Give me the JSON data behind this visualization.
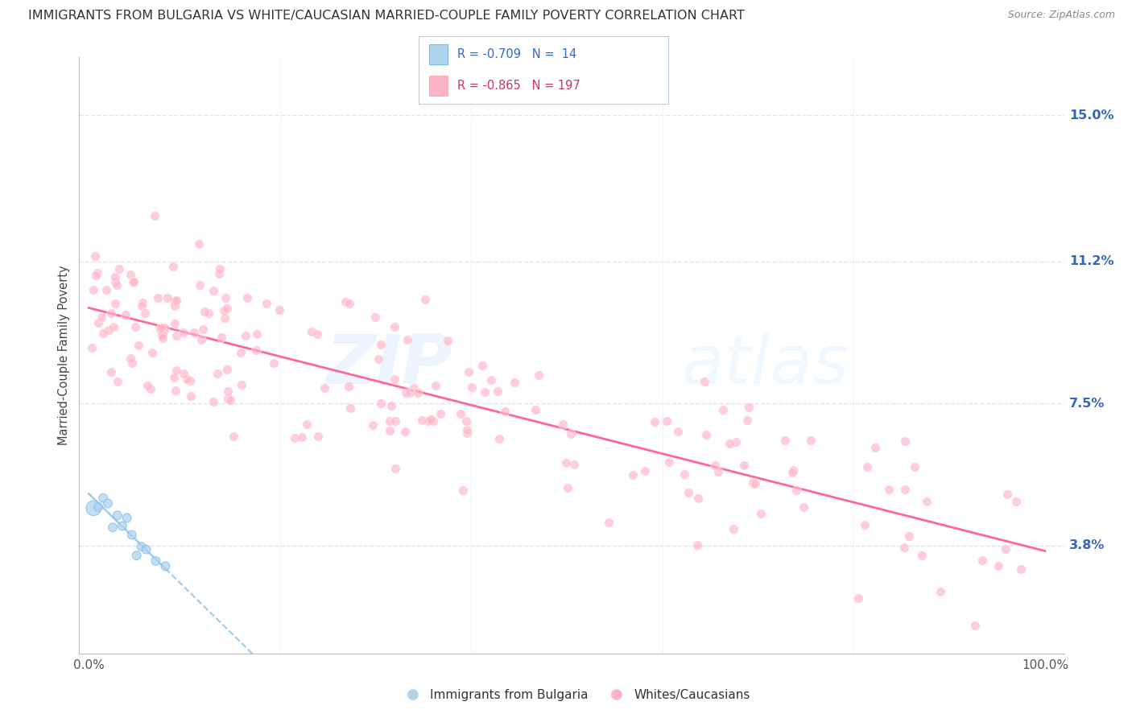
{
  "title": "IMMIGRANTS FROM BULGARIA VS WHITE/CAUCASIAN MARRIED-COUPLE FAMILY POVERTY CORRELATION CHART",
  "source": "Source: ZipAtlas.com",
  "ylabel": "Married-Couple Family Poverty",
  "color_blue": "#7EB8E8",
  "color_blue_fill": "#AED4F0",
  "color_pink": "#FFB3C6",
  "color_line_blue": "#99CCEE",
  "color_line_pink": "#FF6699",
  "legend_blue_r": "-0.709",
  "legend_blue_n": "14",
  "legend_pink_r": "-0.865",
  "legend_pink_n": "197",
  "legend_label_blue": "Immigrants from Bulgaria",
  "legend_label_pink": "Whites/Caucasians",
  "ytick_values": [
    3.8,
    7.5,
    11.2,
    15.0
  ],
  "ytick_labels": [
    "3.8%",
    "7.5%",
    "11.2%",
    "15.0%"
  ],
  "xtick_labels": [
    "0.0%",
    "100.0%"
  ],
  "watermark_zip": "ZIP",
  "watermark_atlas": "atlas",
  "bg_color": "#FFFFFF",
  "grid_color": "#DDDDEE",
  "title_color": "#333333",
  "source_color": "#888888",
  "ylabel_color": "#444444",
  "ytick_color": "#3366BB",
  "xtick_color": "#555555",
  "legend_border": "#BBCCDD",
  "legend_blue_text": "#3366CC",
  "legend_pink_text": "#CC3366"
}
